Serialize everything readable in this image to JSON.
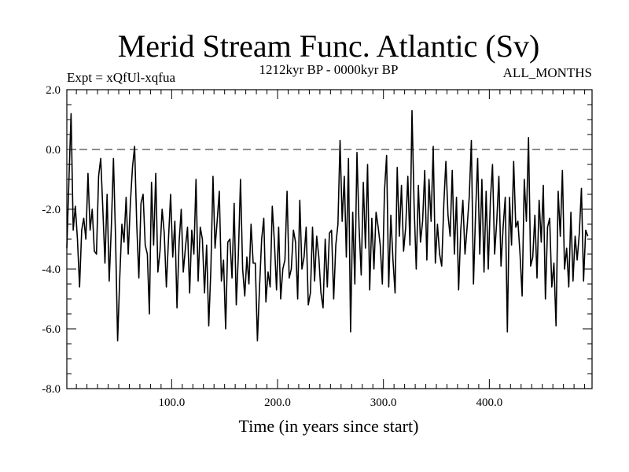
{
  "chart_data": {
    "type": "line",
    "title": "Merid Stream Func. Atlantic (Sv)",
    "subtitle": "1212kyr BP - 0000kyr BP",
    "expt_label": "Expt = xQfUl-xqfua",
    "season_label": "ALL_MONTHS",
    "xlabel": "Time (in years since start)",
    "ylabel": "",
    "xlim": [
      1,
      497
    ],
    "ylim": [
      -8.0,
      2.0
    ],
    "x_ticks": [
      100,
      200,
      300,
      400
    ],
    "x_tick_labels": [
      "100.0",
      "200.0",
      "300.0",
      "400.0"
    ],
    "y_ticks": [
      2,
      0,
      -2,
      -4,
      -6,
      -8
    ],
    "y_tick_labels": [
      "2.0",
      "0.0",
      "-2.0",
      "-4.0",
      "-6.0",
      "-8.0"
    ],
    "reference_line": {
      "y": 0.0,
      "style": "dashed"
    },
    "series": [
      {
        "name": "Merid Stream Func. Atlantic",
        "x_start": 1,
        "x_step": 2,
        "values": [
          -3.3,
          -1.0,
          1.2,
          -2.7,
          -1.9,
          -3.0,
          -4.6,
          -2.7,
          -2.3,
          -3.0,
          -0.8,
          -2.7,
          -2.0,
          -3.4,
          -3.5,
          -0.9,
          -0.3,
          -2.0,
          -3.8,
          -1.5,
          -4.4,
          -2.6,
          -0.3,
          -3.0,
          -6.4,
          -4.3,
          -2.5,
          -3.1,
          -1.6,
          -3.5,
          -1.8,
          -0.6,
          0.1,
          -2.5,
          -4.3,
          -1.8,
          -1.5,
          -3.2,
          -3.5,
          -5.5,
          -1.1,
          -3.2,
          -0.8,
          -4.1,
          -3.4,
          -2.0,
          -2.8,
          -4.6,
          -3.0,
          -1.5,
          -3.6,
          -2.4,
          -5.3,
          -3.1,
          -2.0,
          -4.1,
          -3.3,
          -2.6,
          -4.8,
          -2.7,
          -3.5,
          -1.0,
          -4.4,
          -2.6,
          -3.0,
          -4.8,
          -3.2,
          -5.9,
          -4.0,
          -0.9,
          -3.3,
          -2.4,
          -1.4,
          -4.4,
          -3.7,
          -6.0,
          -3.1,
          -3.0,
          -4.3,
          -1.8,
          -5.2,
          -3.5,
          -1.0,
          -4.0,
          -4.9,
          -3.6,
          -4.5,
          -2.5,
          -3.8,
          -3.8,
          -6.4,
          -4.6,
          -3.0,
          -2.3,
          -5.1,
          -4.1,
          -4.6,
          -1.9,
          -3.1,
          -4.7,
          -2.6,
          -5.0,
          -4.0,
          -3.7,
          -1.4,
          -4.3,
          -4.0,
          -2.7,
          -3.1,
          -5.0,
          -1.7,
          -4.0,
          -3.6,
          -2.6,
          -5.2,
          -4.8,
          -2.6,
          -4.4,
          -2.9,
          -3.6,
          -4.8,
          -5.3,
          -3.0,
          -4.6,
          -2.8,
          -2.7,
          -5.0,
          -3.2,
          -2.5,
          0.3,
          -2.4,
          -0.9,
          -3.6,
          -0.3,
          -6.1,
          -2.1,
          -4.5,
          -0.1,
          -2.6,
          -4.2,
          -1.1,
          -3.3,
          -0.5,
          -4.7,
          -2.3,
          -4.0,
          -2.1,
          -2.6,
          -3.2,
          -4.5,
          -1.4,
          -0.2,
          -4.6,
          -2.2,
          -3.7,
          -4.8,
          -0.6,
          -2.9,
          -1.2,
          -3.4,
          -2.6,
          -0.9,
          -3.2,
          1.3,
          -1.9,
          -4.0,
          -1.2,
          -3.1,
          -2.4,
          -0.7,
          -3.7,
          -1.0,
          -2.4,
          0.1,
          -3.8,
          -2.5,
          -3.5,
          -3.9,
          -1.8,
          -0.4,
          -2.2,
          -2.9,
          -0.7,
          -3.5,
          -1.6,
          -4.7,
          -2.7,
          -1.7,
          -3.5,
          -2.6,
          -1.6,
          0.3,
          -4.5,
          -2.1,
          -0.3,
          -3.5,
          -1.0,
          -4.1,
          -1.4,
          -4.0,
          -1.7,
          -0.5,
          -3.5,
          -2.4,
          -0.9,
          -3.9,
          -2.6,
          -1.6,
          -6.1,
          -1.6,
          -3.2,
          -0.4,
          -2.6,
          -2.4,
          -3.5,
          -4.9,
          -1.0,
          -2.4,
          0.4,
          -3.9,
          -3.6,
          -2.2,
          -4.3,
          -1.7,
          -3.1,
          -1.2,
          -5.0,
          -2.6,
          -2.3,
          -4.6,
          -3.8,
          -5.9,
          -1.4,
          -2.9,
          -0.7,
          -4.0,
          -3.3,
          -4.6,
          -2.1,
          -4.4,
          -2.9,
          -3.7,
          -2.8,
          -1.3,
          -4.4,
          -2.7,
          -2.9
        ]
      }
    ]
  }
}
